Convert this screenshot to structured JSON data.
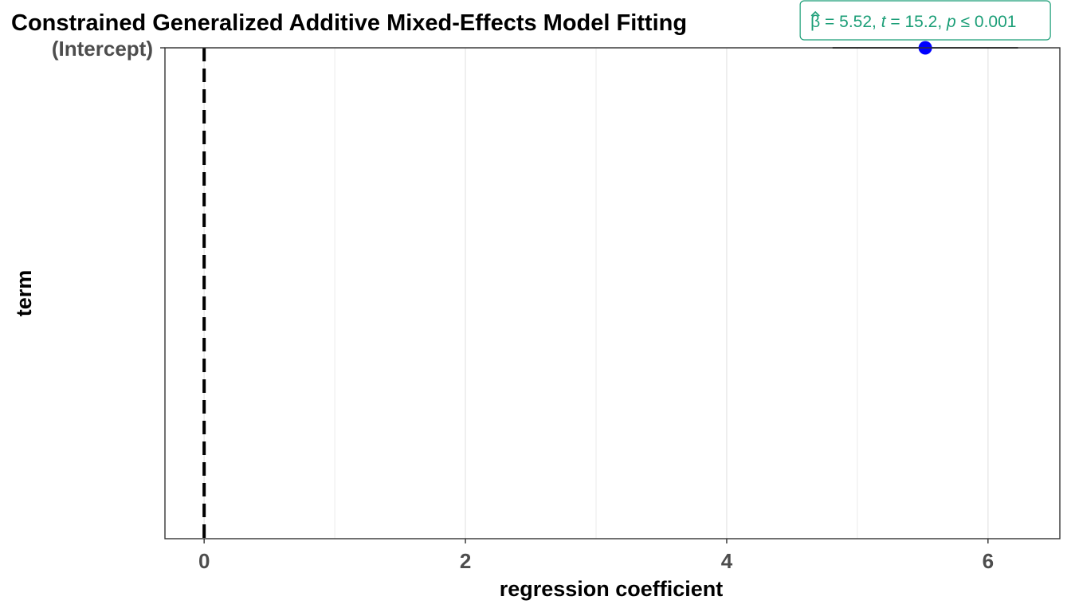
{
  "chart_data": {
    "type": "scatter",
    "title": "Constrained Generalized Additive Mixed-Effects Model Fitting",
    "xlabel": "regression coefficient",
    "ylabel": "term",
    "xlim": [
      -0.3,
      6.55
    ],
    "x_ticks": [
      0,
      2,
      4,
      6
    ],
    "x_tick_labels": [
      "0",
      "2",
      "4",
      "6"
    ],
    "minor_gridlines_x": [
      1,
      3,
      5
    ],
    "categories": [
      "(Intercept)"
    ],
    "points": [
      {
        "term": "(Intercept)",
        "estimate": 5.52,
        "conf_low": 4.81,
        "conf_high": 6.23
      }
    ],
    "reference_line": {
      "x": 0,
      "style": "dashed",
      "color": "#000000"
    },
    "annotation": {
      "term": "(Intercept)",
      "beta_symbol": "β",
      "beta_value": "5.52",
      "t_value": "15.2",
      "p_value": "0.001",
      "equals": "=",
      "leq": "≤",
      "separator": ",",
      "t_label": "t",
      "p_label": "p"
    },
    "grid": true,
    "legend": "none",
    "colors": {
      "point": "#0000ff",
      "errorbar": "#000000",
      "annotation": "#1b9e77",
      "grid": "#ebebeb",
      "panel_border": "#333333",
      "tick_label": "#4d4d4d"
    }
  }
}
